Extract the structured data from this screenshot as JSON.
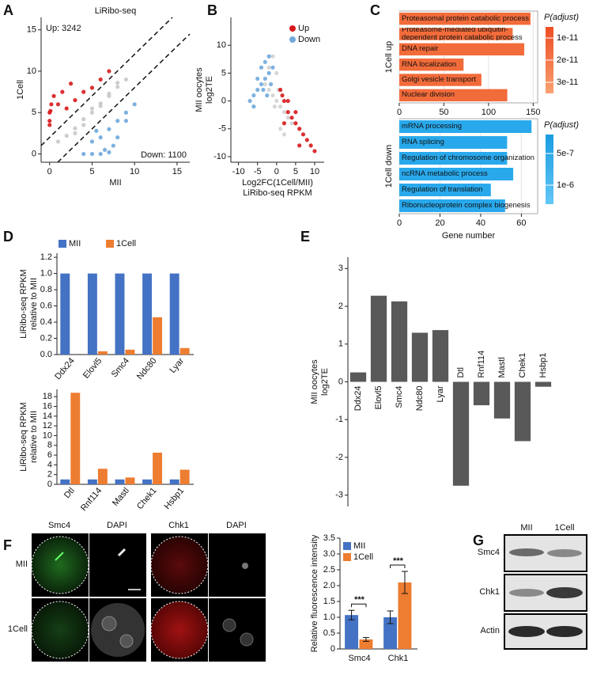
{
  "chart_data": [
    {
      "panel": "A",
      "type": "scatter",
      "title": "LiRibo-seq",
      "x_label": [
        "MII"
      ],
      "y_label": [
        "1Cell"
      ],
      "annotations": [
        "Up: 3242",
        "Down: 1100"
      ],
      "xlim": [
        -1,
        16.5
      ],
      "ylim": [
        -1,
        16.5
      ],
      "xticks": [
        0,
        5,
        10,
        15
      ],
      "yticks": [
        0,
        5,
        10,
        15
      ],
      "series": [
        {
          "color": "#c8c8c8",
          "x": [
            1,
            2,
            3,
            4,
            5,
            6,
            7,
            8,
            9,
            3,
            5,
            7,
            6,
            4,
            8
          ],
          "values": [
            1.5,
            2.2,
            3.1,
            4.2,
            5,
            6.1,
            7,
            8.1,
            9,
            2.5,
            5.5,
            7.3,
            5.8,
            3.5,
            8.6
          ]
        },
        {
          "color": "#d7191c",
          "x": [
            0,
            0,
            0.2,
            0.5,
            1,
            2,
            3,
            4,
            5,
            6,
            7,
            0.1,
            1.5,
            2.5,
            0
          ],
          "values": [
            4,
            5,
            6,
            7,
            6,
            5.5,
            6.5,
            7.5,
            8,
            9,
            10,
            5.2,
            7.5,
            8.5,
            3.5
          ]
        },
        {
          "color": "#6fa8dc",
          "x": [
            4,
            5,
            6,
            7,
            8,
            9,
            10,
            5.5,
            6.5,
            7.5,
            5,
            6,
            7,
            8,
            9
          ],
          "values": [
            0,
            1.5,
            2,
            3,
            4,
            5,
            6,
            2.8,
            0.5,
            1,
            0,
            0,
            0.2,
            2,
            4
          ]
        }
      ]
    },
    {
      "panel": "B",
      "type": "scatter",
      "x_label": [
        "Log2FC(1Cell/MII)",
        "LiRibo-seq RPKM"
      ],
      "y_label": [
        "MII oocytes",
        "log2TE"
      ],
      "xlim": [
        -12,
        12.5
      ],
      "ylim": [
        -11,
        15
      ],
      "xticks": [
        -10,
        -5,
        0,
        5,
        10
      ],
      "yticks": [
        -10,
        -5,
        0,
        5,
        10
      ],
      "legend": "top-right",
      "series": [
        {
          "color": "#d3d3d3",
          "x": [
            -3,
            -2,
            -1,
            0,
            1,
            2,
            3,
            0,
            -1,
            1,
            2,
            -2,
            4,
            0.5,
            -0.5
          ],
          "values": [
            3,
            2,
            1,
            0,
            -1,
            -2,
            -3,
            5,
            8,
            -5,
            -6,
            6,
            -4,
            2,
            -1
          ]
        },
        {
          "name": "Up",
          "color": "#d7191c",
          "x": [
            1,
            2,
            3,
            4,
            5,
            6,
            7,
            8,
            9,
            10,
            3,
            5,
            2,
            1.5,
            6
          ],
          "values": [
            2,
            0,
            -2,
            -3,
            -4,
            -5,
            -6,
            -7,
            -8,
            -9,
            0,
            -2,
            -4,
            1,
            -8
          ]
        },
        {
          "name": "Down",
          "color": "#6fa8dc",
          "x": [
            -1,
            -2,
            -3,
            -4,
            -5,
            -6,
            -7,
            -3,
            -2,
            -4,
            -5,
            -1.5,
            -2.5,
            -3.5,
            -6
          ],
          "values": [
            6,
            5,
            4,
            3,
            2,
            1,
            0,
            7,
            8,
            6,
            4,
            3,
            1,
            2,
            -1
          ]
        }
      ]
    },
    {
      "panel": "C",
      "type": "hbar",
      "y_label": [
        "1Cell up"
      ],
      "categories": [
        "Proteasomal protein catabolic process",
        "Proteasome-mediated ubiquitin-dependent protein catabolic process",
        "DNA repair",
        "RNA localization",
        "Golgi vesicle transport",
        "Nuclear division"
      ],
      "values": [
        147,
        127,
        140,
        72,
        92,
        121
      ],
      "color": "#f26b3a",
      "xlim": [
        0,
        155
      ],
      "xticks": [
        0,
        50,
        100,
        150
      ],
      "grid": true,
      "colorbar": {
        "title": "P(adjust)",
        "lim": [
          5e-12,
          3.5e-11
        ],
        "ticks": [
          {
            "value": 1e-11,
            "label": "1e-11"
          },
          {
            "value": 2e-11,
            "label": "2e-11"
          },
          {
            "value": 3e-11,
            "label": "3e-11"
          }
        ],
        "colors": [
          "#ee4d23",
          "#f9a070"
        ]
      }
    },
    {
      "type": "hbar",
      "y_label": [
        "1Cell down"
      ],
      "x_label": [
        "Gene number"
      ],
      "categories": [
        "mRNA processing",
        "RNA splicing",
        "Regulation of chromosome organization",
        "ncRNA metabolic process",
        "Regulation of translation",
        "Ribonucleoprotein complex biogenesis"
      ],
      "values": [
        65,
        53,
        53,
        56,
        45,
        52
      ],
      "color": "#29a9ec",
      "xlim": [
        0,
        68
      ],
      "xticks": [
        0,
        20,
        40,
        60
      ],
      "grid": true,
      "colorbar": {
        "title": "P(adjust)",
        "lim": [
          2e-07,
          1.3e-06
        ],
        "ticks": [
          {
            "value": 5e-07,
            "label": "5e-7"
          },
          {
            "value": 1e-06,
            "label": "1e-6"
          }
        ],
        "colors": [
          "#1a9ce0",
          "#63c7f7"
        ]
      }
    },
    {
      "panel": "D",
      "type": "bar",
      "y_label": [
        "LiRibo-seq RPKM",
        "relative to MII"
      ],
      "categories": [
        "Ddx24",
        "Elovl5",
        "Smc4",
        "Ndc80",
        "Lyar"
      ],
      "series": [
        {
          "name": "MII",
          "color": "#4472c4",
          "values": [
            1,
            1,
            1,
            1,
            1
          ]
        },
        {
          "name": "1Cell",
          "color": "#ed7d31",
          "values": [
            0,
            0.04,
            0.06,
            0.46,
            0.08
          ]
        }
      ],
      "ylim": [
        0,
        1.25
      ],
      "yticks": [
        {
          "value": 0,
          "label": "0.0"
        },
        0.2,
        0.4,
        0.6,
        0.8,
        {
          "value": 1,
          "label": "1.0"
        },
        1.2
      ]
    },
    {
      "type": "bar",
      "y_label": [
        "LiRibo-seq RPKM",
        "relative to MII"
      ],
      "categories": [
        "Dtl",
        "Rnf114",
        "Mastl",
        "Chek1",
        "Hsbp1"
      ],
      "series": [
        {
          "color": "#4472c4",
          "values": [
            1,
            1,
            1,
            1,
            1
          ]
        },
        {
          "color": "#ed7d31",
          "values": [
            18.8,
            3.2,
            1.4,
            6.5,
            3.0
          ]
        }
      ],
      "ylim": [
        0,
        19.5
      ],
      "yticks": [
        0,
        2,
        4,
        6,
        8,
        10,
        12,
        14,
        16,
        18
      ]
    },
    {
      "panel": "E",
      "type": "bar",
      "y_label": [
        "MII oocytes",
        "log2TE"
      ],
      "categories": [
        "Ddx24",
        "Elovl5",
        "Smc4",
        "Ndc80",
        "Lyar",
        "Dtl",
        "Rnf114",
        "Mastl",
        "Chek1",
        "Hsbp1"
      ],
      "values": [
        0.25,
        2.28,
        2.13,
        1.3,
        1.37,
        -2.75,
        -0.62,
        -0.97,
        -1.57,
        -0.13
      ],
      "color": "#595959",
      "ylim": [
        -3.3,
        3.3
      ],
      "yticks": [
        -3,
        -2,
        -1,
        0,
        1,
        2,
        3
      ]
    },
    {
      "panel": "F",
      "type": "bar",
      "y_label": [
        "Relative fluorescence intensity"
      ],
      "categories": [
        "Smc4",
        "Chk1"
      ],
      "series": [
        {
          "name": "MII",
          "color": "#4472c4",
          "values": [
            1.07,
            1.0
          ],
          "errors": [
            0.15,
            0.2
          ]
        },
        {
          "name": "1Cell",
          "color": "#ed7d31",
          "values": [
            0.3,
            2.1
          ],
          "errors": [
            0.06,
            0.35
          ]
        }
      ],
      "annotations": [
        "***",
        "***"
      ],
      "ylim": [
        0,
        3.5
      ],
      "yticks": [
        0,
        0.5,
        {
          "value": 1,
          "label": "1.0"
        },
        1.5,
        {
          "value": 2,
          "label": "2.0"
        },
        2.5,
        {
          "value": 3,
          "label": "3.0"
        },
        3.5
      ]
    }
  ],
  "microscopy": {
    "columns": [
      "Smc4",
      "DAPI",
      "Chk1",
      "DAPI"
    ],
    "rows": [
      "MII",
      "1Cell"
    ]
  },
  "blot": {
    "panel": "G",
    "columns": [
      "MII",
      "1Cell"
    ],
    "rows": [
      "Smc4",
      "Chk1",
      "Actin"
    ]
  }
}
